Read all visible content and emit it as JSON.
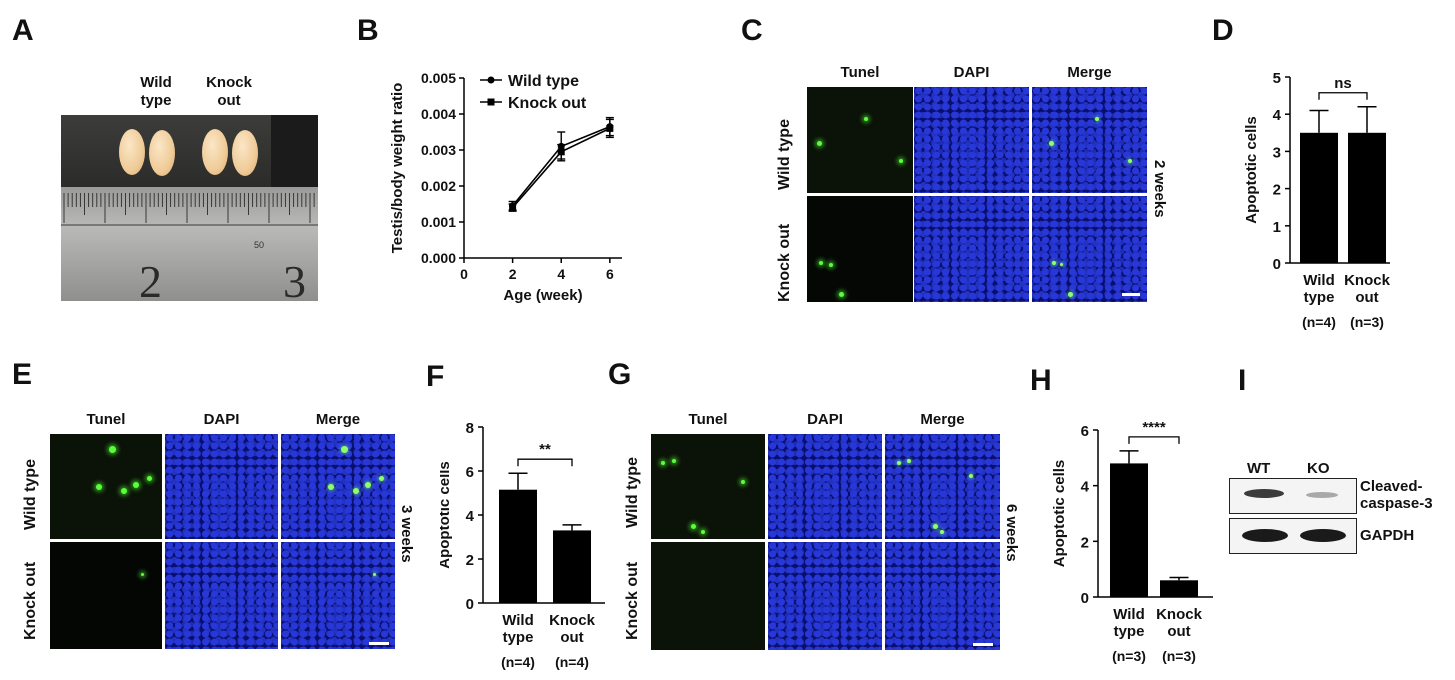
{
  "panels": {
    "A": {
      "label": "A",
      "groups": [
        {
          "line1": "Wild",
          "line2": "type"
        },
        {
          "line1": "Knock",
          "line2": "out"
        }
      ],
      "ruler_numbers": [
        "2",
        "3"
      ],
      "ruler_small": "50"
    },
    "B": {
      "label": "B"
    },
    "C": {
      "label": "C",
      "columns": [
        "Tunel",
        "DAPI",
        "Merge"
      ],
      "rows": [
        "Wild type",
        "Knock out"
      ],
      "age": "2 weeks"
    },
    "D": {
      "label": "D"
    },
    "E": {
      "label": "E",
      "columns": [
        "Tunel",
        "DAPI",
        "Merge"
      ],
      "rows": [
        "Wild type",
        "Knock out"
      ],
      "age": "3 weeks"
    },
    "F": {
      "label": "F"
    },
    "G": {
      "label": "G",
      "columns": [
        "Tunel",
        "DAPI",
        "Merge"
      ],
      "rows": [
        "Wild type",
        "Knock out"
      ],
      "age": "6 weeks"
    },
    "H": {
      "label": "H"
    },
    "I": {
      "label": "I",
      "lanes": [
        "WT",
        "KO"
      ],
      "bands": [
        {
          "line1": "Cleaved-",
          "line2": "caspase-3"
        },
        {
          "line1": "GAPDH",
          "line2": ""
        }
      ]
    }
  },
  "chart_data": [
    {
      "id": "B",
      "type": "line",
      "xlabel": "Age (week)",
      "ylabel": "Testis/body weight ratio",
      "xlim": [
        0,
        6.5
      ],
      "ylim": [
        0,
        0.005
      ],
      "xticks": [
        "0",
        "2",
        "4",
        "6"
      ],
      "yticks": [
        "0.000",
        "0.001",
        "0.002",
        "0.003",
        "0.004",
        "0.005"
      ],
      "legend_position": "top-left",
      "series": [
        {
          "name": "Wild type",
          "marker": "circle",
          "x": [
            2,
            4,
            6
          ],
          "y": [
            0.00145,
            0.0031,
            0.00365
          ],
          "err": [
            0.00012,
            0.0004,
            0.00025
          ]
        },
        {
          "name": "Knock out",
          "marker": "square",
          "x": [
            2,
            4,
            6
          ],
          "y": [
            0.0014,
            0.00295,
            0.0036
          ],
          "err": [
            0.0001,
            0.0002,
            0.00025
          ]
        }
      ]
    },
    {
      "id": "D",
      "type": "bar",
      "ylabel": "Apoptotic cells",
      "ylim": [
        0,
        5
      ],
      "yticks": [
        "0",
        "1",
        "2",
        "3",
        "4",
        "5"
      ],
      "categories": [
        {
          "line1": "Wild",
          "line2": "type",
          "n": "(n=4)"
        },
        {
          "line1": "Knock",
          "line2": "out",
          "n": "(n=3)"
        }
      ],
      "values": [
        3.5,
        3.5
      ],
      "err": [
        0.6,
        0.7
      ],
      "significance": "ns"
    },
    {
      "id": "F",
      "type": "bar",
      "ylabel": "Apoptotic cells",
      "ylim": [
        0,
        8
      ],
      "yticks": [
        "0",
        "2",
        "4",
        "6",
        "8"
      ],
      "categories": [
        {
          "line1": "Wild",
          "line2": "type",
          "n": "(n=4)"
        },
        {
          "line1": "Knock",
          "line2": "out",
          "n": "(n=4)"
        }
      ],
      "values": [
        5.15,
        3.3
      ],
      "err": [
        0.75,
        0.25
      ],
      "significance": "**"
    },
    {
      "id": "H",
      "type": "bar",
      "ylabel": "Apoptotic cells",
      "ylim": [
        0,
        6
      ],
      "yticks": [
        "0",
        "2",
        "4",
        "6"
      ],
      "categories": [
        {
          "line1": "Wild",
          "line2": "type",
          "n": "(n=3)"
        },
        {
          "line1": "Knock",
          "line2": "out",
          "n": "(n=3)"
        }
      ],
      "values": [
        4.8,
        0.6
      ],
      "err": [
        0.45,
        0.1
      ],
      "significance": "****"
    }
  ]
}
